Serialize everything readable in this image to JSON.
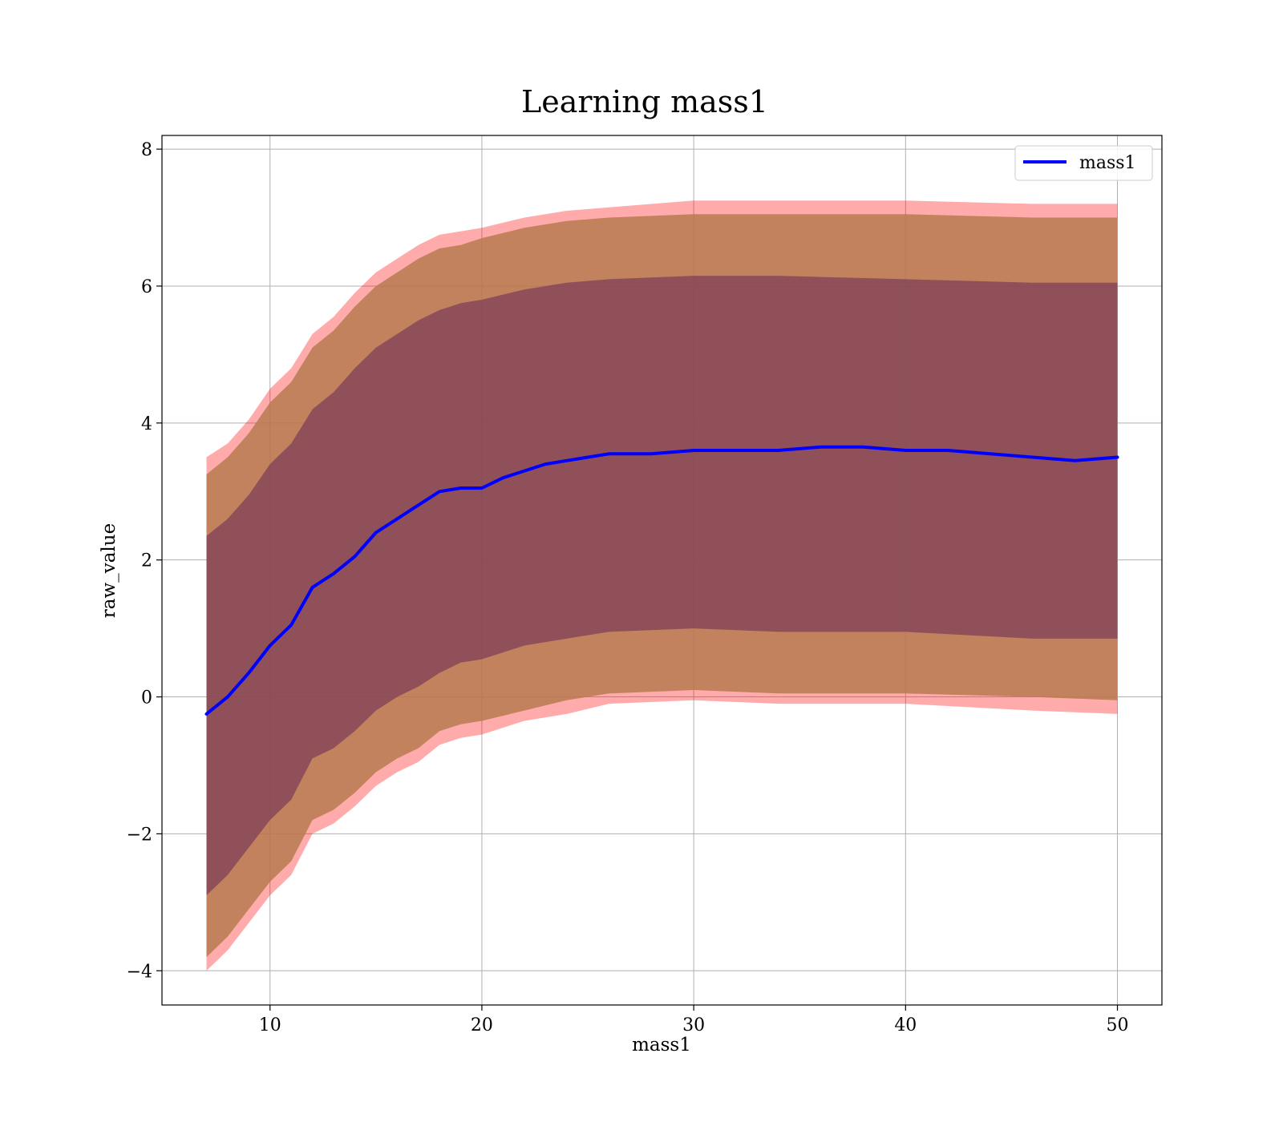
{
  "chart_data": {
    "type": "area",
    "title": "Learning mass1",
    "xlabel": "mass1",
    "ylabel": "raw_value",
    "xlim": [
      4.9,
      52.1
    ],
    "ylim": [
      -4.5,
      8.2
    ],
    "xticks": [
      10,
      20,
      30,
      40,
      50
    ],
    "yticks": [
      -4,
      -2,
      0,
      2,
      4,
      6,
      8
    ],
    "xtick_labels": [
      "10",
      "20",
      "30",
      "40",
      "50"
    ],
    "ytick_labels": [
      "−4",
      "−2",
      "0",
      "2",
      "4",
      "6",
      "8"
    ],
    "grid": true,
    "legend_position": "top-right",
    "colors": {
      "line": "#0000ff",
      "outer_band": "#ff0000",
      "middle_band": "#b87a50",
      "inner_band": "#7d3f5a",
      "grid": "#b0b0b0"
    },
    "series": [
      {
        "name": "mass1",
        "x": [
          7,
          8,
          9,
          10,
          11,
          12,
          13,
          14,
          15,
          16,
          17,
          18,
          19,
          20,
          21,
          22,
          23,
          24,
          25,
          26,
          28,
          30,
          32,
          34,
          36,
          38,
          40,
          42,
          44,
          46,
          48,
          50
        ],
        "y": [
          -0.25,
          0.0,
          0.35,
          0.75,
          1.05,
          1.6,
          1.8,
          2.05,
          2.4,
          2.6,
          2.8,
          3.0,
          3.05,
          3.05,
          3.2,
          3.3,
          3.4,
          3.45,
          3.5,
          3.55,
          3.55,
          3.6,
          3.6,
          3.6,
          3.65,
          3.65,
          3.6,
          3.6,
          3.55,
          3.5,
          3.45,
          3.5
        ]
      }
    ],
    "bands": [
      {
        "level": "outer",
        "x": [
          7,
          8,
          9,
          10,
          11,
          12,
          13,
          14,
          15,
          16,
          17,
          18,
          19,
          20,
          22,
          24,
          26,
          30,
          34,
          40,
          46,
          50
        ],
        "upper": [
          3.5,
          3.7,
          4.05,
          4.5,
          4.8,
          5.3,
          5.55,
          5.9,
          6.2,
          6.4,
          6.6,
          6.75,
          6.8,
          6.85,
          7.0,
          7.1,
          7.15,
          7.25,
          7.25,
          7.25,
          7.2,
          7.2
        ],
        "lower": [
          -4.0,
          -3.7,
          -3.3,
          -2.9,
          -2.6,
          -2.0,
          -1.85,
          -1.6,
          -1.3,
          -1.1,
          -0.95,
          -0.7,
          -0.6,
          -0.55,
          -0.35,
          -0.25,
          -0.1,
          -0.05,
          -0.1,
          -0.1,
          -0.2,
          -0.25
        ]
      },
      {
        "level": "middle",
        "x": [
          7,
          8,
          9,
          10,
          11,
          12,
          13,
          14,
          15,
          16,
          17,
          18,
          19,
          20,
          22,
          24,
          26,
          30,
          34,
          40,
          46,
          50
        ],
        "upper": [
          3.25,
          3.5,
          3.85,
          4.3,
          4.6,
          5.1,
          5.35,
          5.7,
          6.0,
          6.2,
          6.4,
          6.55,
          6.6,
          6.7,
          6.85,
          6.95,
          7.0,
          7.05,
          7.05,
          7.05,
          7.0,
          7.0
        ],
        "lower": [
          -3.8,
          -3.5,
          -3.1,
          -2.7,
          -2.4,
          -1.8,
          -1.65,
          -1.4,
          -1.1,
          -0.9,
          -0.75,
          -0.5,
          -0.4,
          -0.35,
          -0.2,
          -0.05,
          0.05,
          0.1,
          0.05,
          0.05,
          0.0,
          -0.05
        ]
      },
      {
        "level": "inner",
        "x": [
          7,
          8,
          9,
          10,
          11,
          12,
          13,
          14,
          15,
          16,
          17,
          18,
          19,
          20,
          22,
          24,
          26,
          30,
          34,
          40,
          46,
          50
        ],
        "upper": [
          2.35,
          2.6,
          2.95,
          3.4,
          3.7,
          4.2,
          4.45,
          4.8,
          5.1,
          5.3,
          5.5,
          5.65,
          5.75,
          5.8,
          5.95,
          6.05,
          6.1,
          6.15,
          6.15,
          6.1,
          6.05,
          6.05
        ],
        "lower": [
          -2.9,
          -2.6,
          -2.2,
          -1.8,
          -1.5,
          -0.9,
          -0.75,
          -0.5,
          -0.2,
          0.0,
          0.15,
          0.35,
          0.5,
          0.55,
          0.75,
          0.85,
          0.95,
          1.0,
          0.95,
          0.95,
          0.85,
          0.85
        ]
      }
    ]
  }
}
